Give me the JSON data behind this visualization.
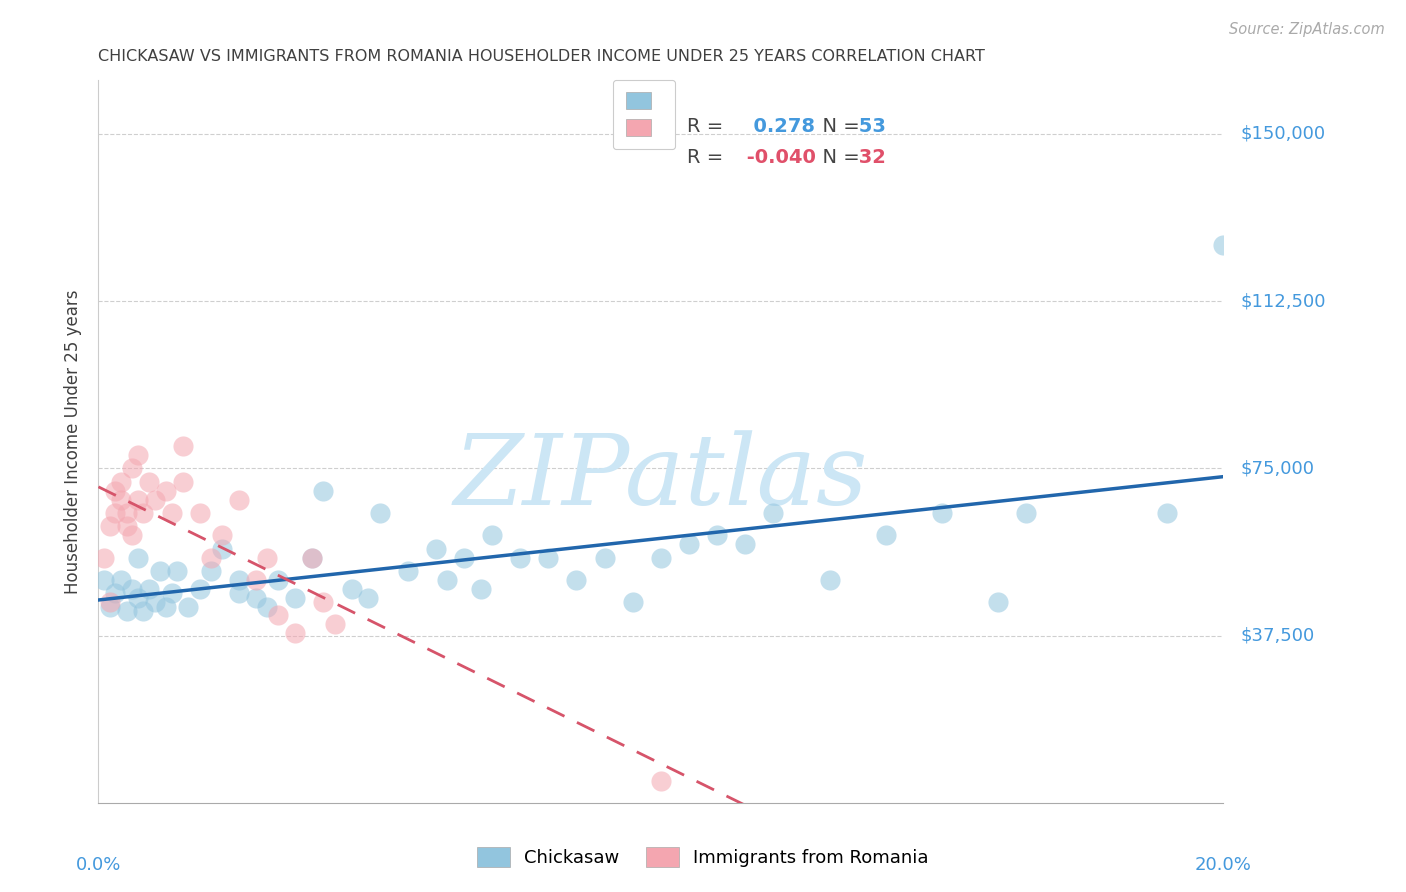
{
  "title": "CHICKASAW VS IMMIGRANTS FROM ROMANIA HOUSEHOLDER INCOME UNDER 25 YEARS CORRELATION CHART",
  "source": "Source: ZipAtlas.com",
  "ylabel": "Householder Income Under 25 years",
  "xlim": [
    0.0,
    0.2
  ],
  "ylim": [
    0,
    162000
  ],
  "ytick_vals": [
    37500,
    75000,
    112500,
    150000
  ],
  "ytick_labels": [
    "$37,500",
    "$75,000",
    "$112,500",
    "$150,000"
  ],
  "r_blue": 0.278,
  "n_blue": 53,
  "r_pink": -0.04,
  "n_pink": 32,
  "blue_scatter": "#92c5de",
  "pink_scatter": "#f4a6b0",
  "blue_line": "#2166ac",
  "pink_line": "#d6546a",
  "title_color": "#404040",
  "ylabel_color": "#404040",
  "tick_color": "#4499dd",
  "source_color": "#aaaaaa",
  "watermark_color": "#cce6f5",
  "grid_color": "#bbbbbb",
  "legend_text_color": "#444444",
  "chickasaw_x": [
    0.001,
    0.002,
    0.003,
    0.004,
    0.005,
    0.006,
    0.007,
    0.007,
    0.008,
    0.009,
    0.01,
    0.011,
    0.012,
    0.013,
    0.014,
    0.016,
    0.018,
    0.02,
    0.022,
    0.025,
    0.025,
    0.028,
    0.03,
    0.032,
    0.035,
    0.038,
    0.04,
    0.045,
    0.048,
    0.05,
    0.055,
    0.06,
    0.062,
    0.065,
    0.068,
    0.07,
    0.075,
    0.08,
    0.085,
    0.09,
    0.095,
    0.1,
    0.105,
    0.11,
    0.115,
    0.12,
    0.13,
    0.14,
    0.15,
    0.16,
    0.165,
    0.19,
    0.2
  ],
  "chickasaw_y": [
    50000,
    44000,
    47000,
    50000,
    43000,
    48000,
    46000,
    55000,
    43000,
    48000,
    45000,
    52000,
    44000,
    47000,
    52000,
    44000,
    48000,
    52000,
    57000,
    50000,
    47000,
    46000,
    44000,
    50000,
    46000,
    55000,
    70000,
    48000,
    46000,
    65000,
    52000,
    57000,
    50000,
    55000,
    48000,
    60000,
    55000,
    55000,
    50000,
    55000,
    45000,
    55000,
    58000,
    60000,
    58000,
    65000,
    50000,
    60000,
    65000,
    45000,
    65000,
    65000,
    125000
  ],
  "romania_x": [
    0.001,
    0.002,
    0.002,
    0.003,
    0.003,
    0.004,
    0.004,
    0.005,
    0.005,
    0.006,
    0.006,
    0.007,
    0.007,
    0.008,
    0.009,
    0.01,
    0.012,
    0.013,
    0.015,
    0.015,
    0.018,
    0.02,
    0.022,
    0.025,
    0.028,
    0.03,
    0.032,
    0.035,
    0.038,
    0.04,
    0.042,
    0.1
  ],
  "romania_y": [
    55000,
    62000,
    45000,
    65000,
    70000,
    68000,
    72000,
    65000,
    62000,
    60000,
    75000,
    78000,
    68000,
    65000,
    72000,
    68000,
    70000,
    65000,
    72000,
    80000,
    65000,
    55000,
    60000,
    68000,
    50000,
    55000,
    42000,
    38000,
    55000,
    45000,
    40000,
    5000
  ]
}
